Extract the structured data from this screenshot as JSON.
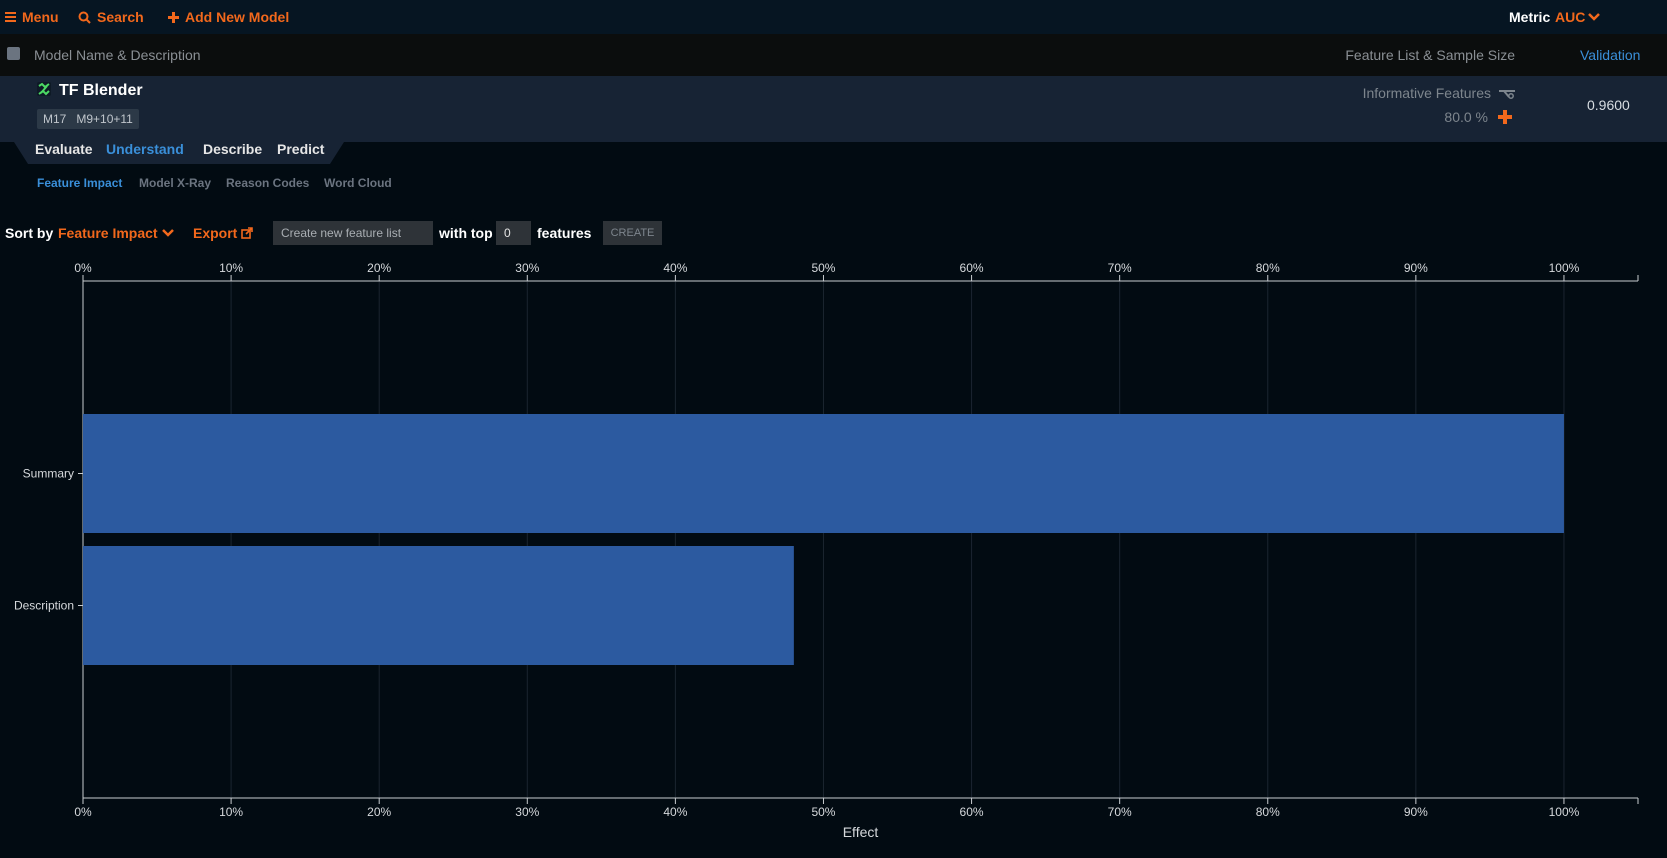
{
  "nav": {
    "menu": "Menu",
    "search": "Search",
    "add_model": "Add New Model",
    "metric_label": "Metric",
    "metric_value": "AUC"
  },
  "columns": {
    "name": "Model Name & Description",
    "feature_list": "Feature List & Sample Size",
    "validation": "Validation"
  },
  "model": {
    "name": "TF Blender",
    "id": "M17",
    "components": "M9+10+11",
    "feature_list": "Informative Features",
    "sample_size": "80.0 %",
    "validation": "0.9600"
  },
  "tabs": [
    {
      "label": "Evaluate",
      "active": false
    },
    {
      "label": "Understand",
      "active": true
    },
    {
      "label": "Describe",
      "active": false
    },
    {
      "label": "Predict",
      "active": false
    }
  ],
  "subtabs": [
    {
      "label": "Feature Impact",
      "active": true
    },
    {
      "label": "Model X-Ray",
      "active": false
    },
    {
      "label": "Reason Codes",
      "active": false
    },
    {
      "label": "Word Cloud",
      "active": false
    }
  ],
  "controls": {
    "sort_by_label": "Sort by",
    "sort_by_value": "Feature Impact",
    "export": "Export",
    "feature_list_placeholder": "Create new feature list",
    "with_top": "with top",
    "top_count": "0",
    "features": "features",
    "create": "CREATE"
  },
  "colors": {
    "accent": "#f2681c",
    "link": "#3a8fd9",
    "bar": "#2c5aa0"
  },
  "chart_data": {
    "type": "bar",
    "orientation": "horizontal",
    "categories": [
      "Summary",
      "Description"
    ],
    "values": [
      100,
      48
    ],
    "xlabel": "Effect",
    "xlim": [
      0,
      105
    ],
    "xticks": [
      0,
      10,
      20,
      30,
      40,
      50,
      60,
      70,
      80,
      90,
      100
    ],
    "tick_format": "percent",
    "grid": true
  }
}
